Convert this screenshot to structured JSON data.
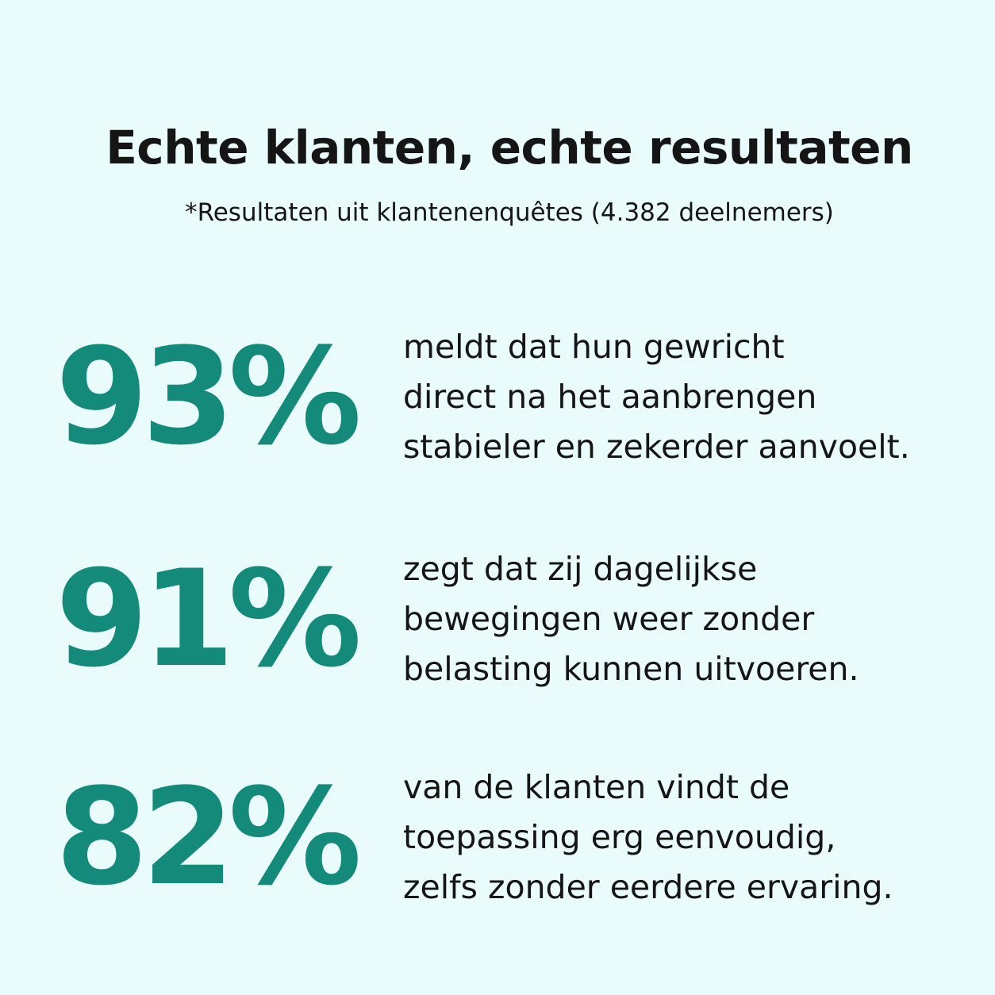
{
  "header": {
    "title": "Echte klanten, echte resultaten",
    "subtitle": "*Resultaten uit klantenenquêtes (4.382 deelnemers)"
  },
  "stats": [
    {
      "value": "93%",
      "lines": [
        "meldt dat hun gewricht",
        "direct na het aanbrengen",
        "stabieler en zekerder aanvoelt."
      ]
    },
    {
      "value": "91%",
      "lines": [
        "zegt dat zij dagelijkse",
        "bewegingen weer zonder",
        "belasting kunnen uitvoeren."
      ]
    },
    {
      "value": "82%",
      "lines": [
        "van de klanten vindt de",
        "toepassing erg eenvoudig,",
        "zelfs zonder eerdere ervaring."
      ]
    }
  ],
  "colors": {
    "background": "#eafbfb",
    "accent": "#138a7a",
    "text": "#151515"
  }
}
